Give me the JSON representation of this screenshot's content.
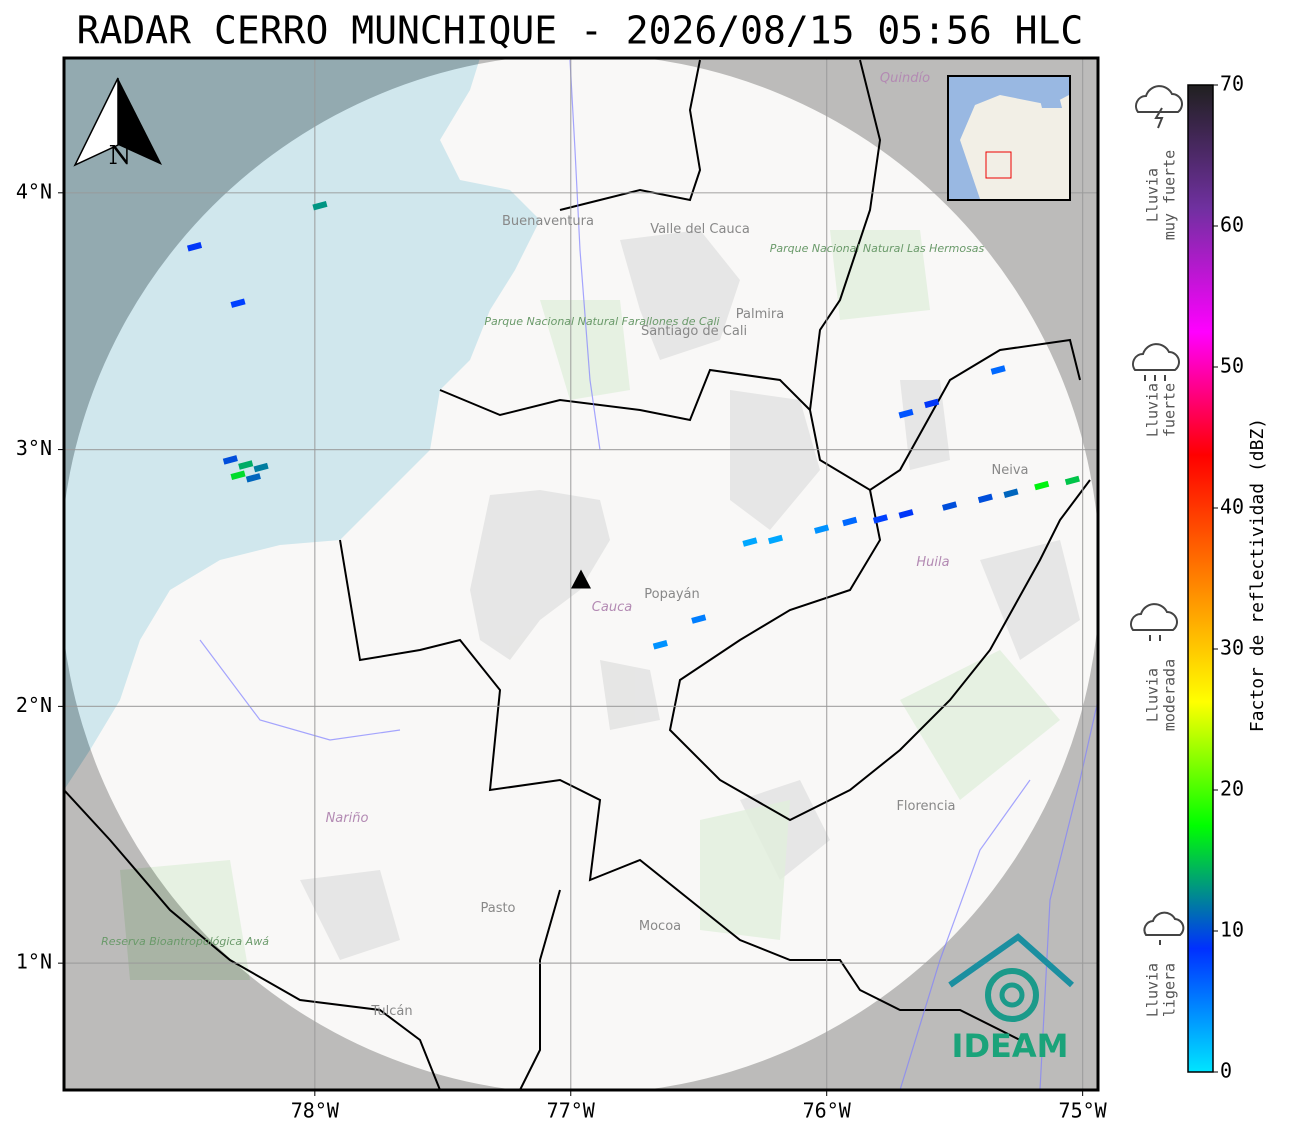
{
  "title": "RADAR CERRO MUNCHIQUE - 2026/08/15 05:56 HLC",
  "map": {
    "xlim": [
      -78.98,
      -74.94
    ],
    "ylim": [
      0.506,
      4.525
    ],
    "xticks": [
      {
        "value": -78,
        "label": "78°W"
      },
      {
        "value": -77,
        "label": "77°W"
      },
      {
        "value": -76,
        "label": "76°W"
      },
      {
        "value": -75,
        "label": "75°W"
      }
    ],
    "yticks": [
      {
        "value": 1,
        "label": "1°N"
      },
      {
        "value": 2,
        "label": "2°N"
      },
      {
        "value": 3,
        "label": "3°N"
      },
      {
        "value": 4,
        "label": "4°N"
      }
    ],
    "grid": true,
    "radar_site": {
      "lon": -76.96,
      "lat": 2.49
    },
    "places": [
      "Buenaventura",
      "Valle del Cauca",
      "Palmira",
      "Santiago de Cali",
      "Parque Nacional Natural Farallones de Cali",
      "Parque Nacional Natural Las Hermosas",
      "Quindío",
      "Neiva",
      "Huila",
      "Popayán",
      "Cauca",
      "Nariño",
      "Pasto",
      "Mocoa",
      "Florencia",
      "Tulcán",
      "Reserva Bioantropológica Awá"
    ],
    "compass": "N",
    "logo": "IDEAM",
    "echoes": [
      {
        "lon": -78.47,
        "lat": 3.79,
        "dbz": 9
      },
      {
        "lon": -78.3,
        "lat": 3.57,
        "dbz": 8
      },
      {
        "lon": -77.98,
        "lat": 3.95,
        "dbz": 13
      },
      {
        "lon": -78.33,
        "lat": 2.96,
        "dbz": 10
      },
      {
        "lon": -78.27,
        "lat": 2.94,
        "dbz": 14
      },
      {
        "lon": -78.21,
        "lat": 2.93,
        "dbz": 12
      },
      {
        "lon": -78.3,
        "lat": 2.9,
        "dbz": 16
      },
      {
        "lon": -78.24,
        "lat": 2.89,
        "dbz": 11
      },
      {
        "lon": -76.3,
        "lat": 2.64,
        "dbz": 3
      },
      {
        "lon": -76.2,
        "lat": 2.65,
        "dbz": 3
      },
      {
        "lon": -76.02,
        "lat": 2.69,
        "dbz": 4
      },
      {
        "lon": -75.91,
        "lat": 2.72,
        "dbz": 6
      },
      {
        "lon": -75.79,
        "lat": 2.73,
        "dbz": 8
      },
      {
        "lon": -75.69,
        "lat": 2.75,
        "dbz": 9
      },
      {
        "lon": -75.52,
        "lat": 2.78,
        "dbz": 10
      },
      {
        "lon": -75.38,
        "lat": 2.81,
        "dbz": 10
      },
      {
        "lon": -75.28,
        "lat": 2.83,
        "dbz": 11
      },
      {
        "lon": -75.16,
        "lat": 2.86,
        "dbz": 17
      },
      {
        "lon": -75.04,
        "lat": 2.88,
        "dbz": 15
      },
      {
        "lon": -76.65,
        "lat": 2.24,
        "dbz": 4
      },
      {
        "lon": -76.5,
        "lat": 2.34,
        "dbz": 5
      },
      {
        "lon": -75.69,
        "lat": 3.14,
        "dbz": 7
      },
      {
        "lon": -75.59,
        "lat": 3.18,
        "dbz": 9
      },
      {
        "lon": -75.33,
        "lat": 3.31,
        "dbz": 6
      }
    ]
  },
  "colorbar": {
    "label": "Factor de reflectividad (dBZ)",
    "lim": [
      0,
      70
    ],
    "ticks": [
      0,
      10,
      20,
      30,
      40,
      50,
      60,
      70
    ],
    "colormap": [
      "#00e5ff",
      "#0030ff",
      "#00ff00",
      "#ffff00",
      "#ff8000",
      "#ff0000",
      "#ff00ff",
      "#7030a0",
      "#202020"
    ]
  },
  "legend": [
    {
      "lines": [
        "Lluvia",
        "muy fuerte"
      ]
    },
    {
      "lines": [
        "Lluvia",
        "fuerte"
      ]
    },
    {
      "lines": [
        "Lluvia",
        "moderada"
      ]
    },
    {
      "lines": [
        "Lluvia",
        "ligera"
      ]
    }
  ]
}
